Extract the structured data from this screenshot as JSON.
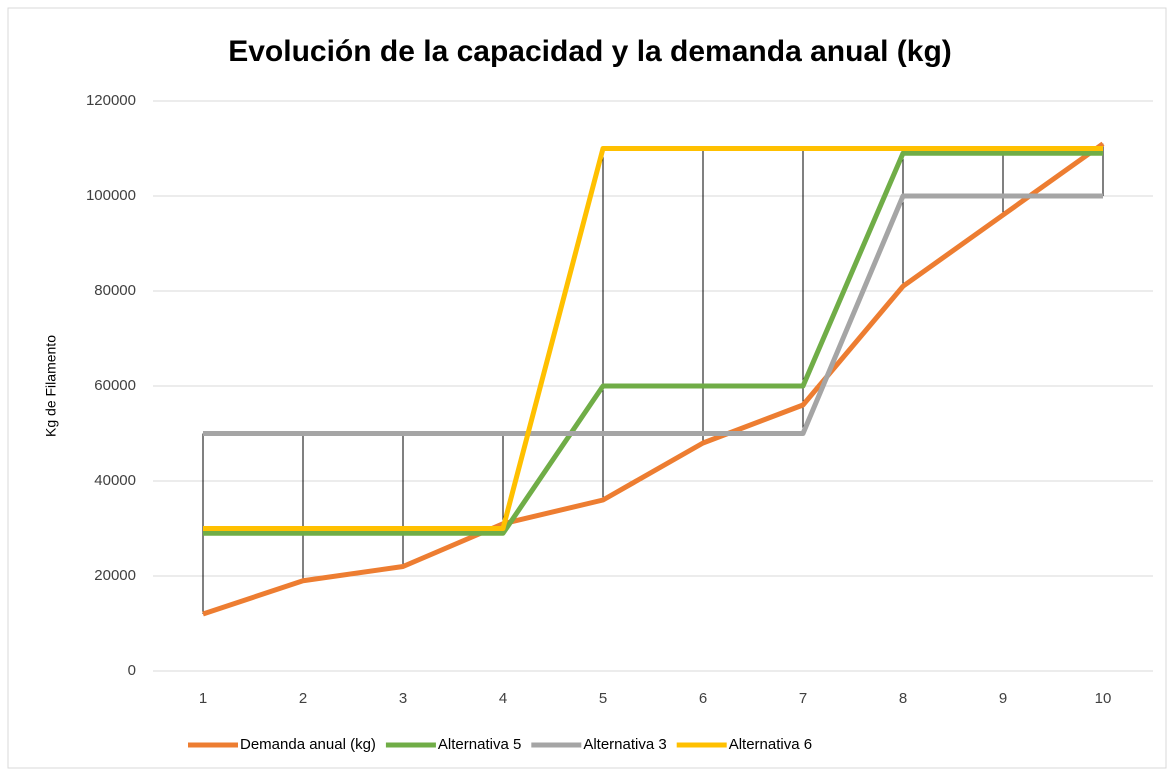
{
  "chart_data": {
    "type": "line",
    "title": "Evolución de la capacidad y la demanda anual (kg)",
    "y_label": "Kg de Filamento",
    "categories": [
      "1",
      "2",
      "3",
      "4",
      "5",
      "6",
      "7",
      "8",
      "9",
      "10"
    ],
    "series": [
      {
        "name": "Demanda anual (kg)",
        "color": "#ed7d31",
        "values": [
          12000,
          19000,
          22000,
          31000,
          36000,
          48000,
          56000,
          81000,
          96000,
          111000
        ]
      },
      {
        "name": "Alternativa 5",
        "color": "#70ad47",
        "values": [
          29000,
          29000,
          29000,
          29000,
          60000,
          60000,
          60000,
          109000,
          109000,
          109000
        ]
      },
      {
        "name": "Alternativa 3",
        "color": "#a5a5a5",
        "values": [
          50000,
          50000,
          50000,
          50000,
          50000,
          50000,
          50000,
          100000,
          100000,
          100000
        ]
      },
      {
        "name": "Alternativa 6",
        "color": "#ffc000",
        "values": [
          30000,
          30000,
          30000,
          30000,
          110000,
          110000,
          110000,
          110000,
          110000,
          110000
        ]
      }
    ],
    "ylim": [
      0,
      120000
    ],
    "yticks": [
      0,
      20000,
      40000,
      60000,
      80000,
      100000,
      120000
    ],
    "grid": true,
    "legend": "bottom"
  }
}
